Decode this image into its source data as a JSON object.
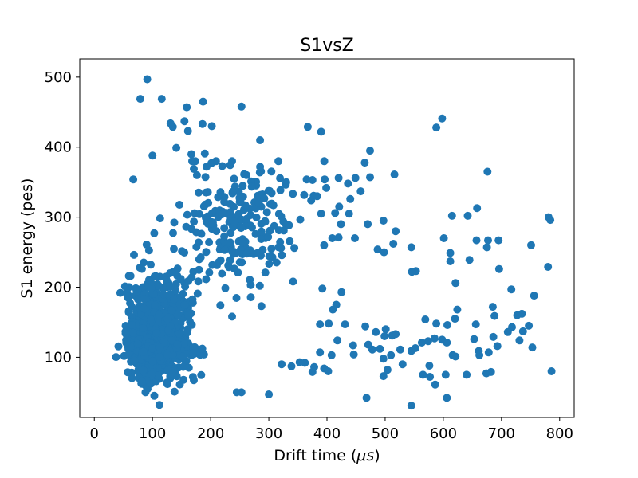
{
  "chart_data": {
    "type": "scatter",
    "title": "S1vsZ",
    "xlabel": "Drift time (μs)",
    "xlabel_parts": {
      "prefix": "Drift time (",
      "unit": "μs",
      "suffix": ")"
    },
    "ylabel": "S1 energy (pes)",
    "xlim": [
      -25,
      825
    ],
    "ylim": [
      14,
      526
    ],
    "xticks": [
      0,
      100,
      200,
      300,
      400,
      500,
      600,
      700,
      800
    ],
    "yticks": [
      100,
      200,
      300,
      400,
      500
    ],
    "grid": false,
    "marker_color": "#1f77b4",
    "cluster_seed": {
      "dense_core": {
        "x_center": 110,
        "x_spread": 50,
        "y_center": 120,
        "y_spread": 35,
        "count": 900
      },
      "upper_band": {
        "x_center": 250,
        "x_spread": 70,
        "y_center": 290,
        "y_spread": 40,
        "count": 220
      }
    },
    "points": [
      [
        91,
        497
      ],
      [
        79,
        469
      ],
      [
        116,
        469
      ],
      [
        187,
        465
      ],
      [
        159,
        457
      ],
      [
        253,
        458
      ],
      [
        131,
        434
      ],
      [
        155,
        437
      ],
      [
        186,
        433
      ],
      [
        135,
        429
      ],
      [
        161,
        423
      ],
      [
        202,
        430
      ],
      [
        285,
        410
      ],
      [
        367,
        429
      ],
      [
        390,
        422
      ],
      [
        588,
        428
      ],
      [
        598,
        441
      ],
      [
        100,
        388
      ],
      [
        141,
        399
      ],
      [
        167,
        390
      ],
      [
        190,
        391
      ],
      [
        474,
        395
      ],
      [
        465,
        378
      ],
      [
        676,
        365
      ],
      [
        67,
        354
      ],
      [
        171,
        369
      ],
      [
        220,
        373
      ],
      [
        285,
        372
      ],
      [
        330,
        350
      ],
      [
        365,
        354
      ],
      [
        396,
        354
      ],
      [
        420,
        356
      ],
      [
        436,
        348
      ],
      [
        449,
        356
      ],
      [
        474,
        357
      ],
      [
        516,
        361
      ],
      [
        383,
        330
      ],
      [
        390,
        305
      ],
      [
        440,
        326
      ],
      [
        458,
        337
      ],
      [
        414,
        306
      ],
      [
        424,
        290
      ],
      [
        438,
        305
      ],
      [
        470,
        290
      ],
      [
        497,
        295
      ],
      [
        518,
        280
      ],
      [
        615,
        302
      ],
      [
        658,
        313
      ],
      [
        642,
        302
      ],
      [
        781,
        300
      ],
      [
        784,
        296
      ],
      [
        601,
        270
      ],
      [
        657,
        267
      ],
      [
        677,
        267
      ],
      [
        695,
        267
      ],
      [
        751,
        260
      ],
      [
        487,
        254
      ],
      [
        514,
        262
      ],
      [
        612,
        249
      ],
      [
        545,
        257
      ],
      [
        675,
        257
      ],
      [
        645,
        239
      ],
      [
        612,
        237
      ],
      [
        498,
        250
      ],
      [
        420,
        271
      ],
      [
        409,
        270
      ],
      [
        395,
        260
      ],
      [
        421,
        315
      ],
      [
        448,
        270
      ],
      [
        780,
        229
      ],
      [
        696,
        226
      ],
      [
        553,
        223
      ],
      [
        546,
        222
      ],
      [
        621,
        206
      ],
      [
        717,
        197
      ],
      [
        756,
        188
      ],
      [
        685,
        172
      ],
      [
        624,
        168
      ],
      [
        620,
        155
      ],
      [
        569,
        154
      ],
      [
        588,
        148
      ],
      [
        607,
        146
      ],
      [
        656,
        147
      ],
      [
        688,
        159
      ],
      [
        727,
        160
      ],
      [
        735,
        162
      ],
      [
        747,
        145
      ],
      [
        718,
        143
      ],
      [
        737,
        137
      ],
      [
        711,
        136
      ],
      [
        731,
        124
      ],
      [
        686,
        129
      ],
      [
        653,
        126
      ],
      [
        585,
        127
      ],
      [
        574,
        123
      ],
      [
        598,
        125
      ],
      [
        606,
        121
      ],
      [
        563,
        121
      ],
      [
        512,
        131
      ],
      [
        518,
        133
      ],
      [
        501,
        140
      ],
      [
        499,
        130
      ],
      [
        484,
        136
      ],
      [
        466,
        144
      ],
      [
        471,
        118
      ],
      [
        445,
        117
      ],
      [
        446,
        104
      ],
      [
        478,
        111
      ],
      [
        491,
        112
      ],
      [
        526,
        111
      ],
      [
        545,
        109
      ],
      [
        552,
        113
      ],
      [
        497,
        98
      ],
      [
        510,
        103
      ],
      [
        530,
        90
      ],
      [
        576,
        88
      ],
      [
        616,
        103
      ],
      [
        621,
        101
      ],
      [
        661,
        109
      ],
      [
        662,
        103
      ],
      [
        678,
        107
      ],
      [
        693,
        116
      ],
      [
        753,
        114
      ],
      [
        786,
        80
      ],
      [
        504,
        82
      ],
      [
        497,
        73
      ],
      [
        565,
        75
      ],
      [
        577,
        72
      ],
      [
        604,
        75
      ],
      [
        640,
        75
      ],
      [
        674,
        77
      ],
      [
        682,
        79
      ],
      [
        586,
        61
      ],
      [
        468,
        42
      ],
      [
        606,
        42
      ],
      [
        545,
        31
      ],
      [
        112,
        32
      ],
      [
        245,
        50
      ],
      [
        253,
        50
      ],
      [
        300,
        47
      ],
      [
        322,
        90
      ],
      [
        339,
        87
      ],
      [
        353,
        93
      ],
      [
        362,
        92
      ],
      [
        375,
        79
      ],
      [
        378,
        86
      ],
      [
        395,
        84
      ],
      [
        402,
        80
      ],
      [
        408,
        103
      ],
      [
        388,
        107
      ],
      [
        418,
        124
      ],
      [
        431,
        147
      ],
      [
        416,
        175
      ],
      [
        425,
        193
      ],
      [
        392,
        198
      ],
      [
        388,
        147
      ],
      [
        403,
        148
      ],
      [
        410,
        168
      ]
    ]
  }
}
